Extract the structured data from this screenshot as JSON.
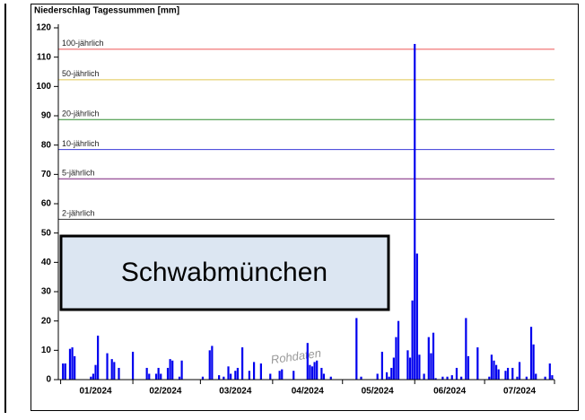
{
  "chart_data": {
    "type": "bar",
    "title": "Niederschlag Tagessummen [mm]",
    "station": "Schwabmünchen",
    "watermark": "Rohdaten",
    "color": "#0000ee",
    "ylim": [
      0,
      120
    ],
    "yticks": [
      0,
      10,
      20,
      30,
      40,
      50,
      60,
      70,
      80,
      90,
      100,
      110,
      120
    ],
    "xlim": [
      0,
      213
    ],
    "xticks": [
      {
        "value": 16,
        "label": "01/2024"
      },
      {
        "value": 46,
        "label": "02/2024"
      },
      {
        "value": 76,
        "label": "03/2024"
      },
      {
        "value": 107,
        "label": "04/2024"
      },
      {
        "value": 137,
        "label": "05/2024"
      },
      {
        "value": 168,
        "label": "06/2024"
      },
      {
        "value": 198,
        "label": "07/2024"
      }
    ],
    "xticks_minor": [
      1,
      32,
      61,
      92,
      122,
      153,
      183,
      213
    ],
    "thresholds": [
      {
        "name": "100-jährlich",
        "value": 112.7,
        "color": "#ee5555"
      },
      {
        "name": "50-jährlich",
        "value": 102.3,
        "color": "#e0c850"
      },
      {
        "name": "20-jährlich",
        "value": 88.7,
        "color": "#2e8b2e"
      },
      {
        "name": "10-jährlich",
        "value": 78.5,
        "color": "#3a3ad8"
      },
      {
        "name": "5-jährlich",
        "value": 68.5,
        "color": "#7a1f7a"
      },
      {
        "name": "2-jährlich",
        "value": 54.7,
        "color": "#333333"
      }
    ],
    "series": [
      {
        "x": [
          2,
          3,
          5,
          6,
          7,
          14,
          15,
          16,
          17,
          21,
          23,
          24,
          26,
          32,
          38,
          39,
          42,
          43,
          44,
          47,
          48,
          49,
          52,
          53,
          62,
          65,
          66,
          69,
          71,
          73,
          74,
          76,
          77,
          79,
          82,
          84,
          87,
          91,
          95,
          96,
          101,
          107,
          108,
          109,
          110,
          111,
          113,
          114,
          117,
          128,
          130,
          137,
          139,
          141,
          142,
          143,
          144,
          145,
          146,
          150,
          151,
          152,
          153,
          154,
          155,
          157,
          159,
          160,
          161,
          162,
          165,
          167,
          169,
          171,
          173,
          175,
          176,
          180,
          185,
          186,
          187,
          188,
          189,
          192,
          193,
          195,
          197,
          198,
          201,
          203,
          204,
          205,
          209,
          211,
          212
        ],
        "values": [
          5.5,
          5.5,
          10.5,
          11,
          8,
          1,
          2,
          5,
          15,
          9,
          7,
          6,
          4,
          9.5,
          4,
          2,
          2,
          4,
          2,
          4,
          7,
          6.5,
          1,
          6.5,
          1,
          10,
          11.5,
          1.5,
          1,
          4.5,
          2,
          3,
          4,
          11,
          3,
          6,
          5.5,
          2,
          3,
          3.5,
          3,
          12.5,
          5,
          4.5,
          6,
          6.5,
          4,
          2,
          1,
          21,
          1,
          2,
          9.5,
          2.5,
          1,
          4,
          7.5,
          14.5,
          20,
          10,
          7.5,
          27,
          114.5,
          43,
          8.5,
          2,
          14.5,
          9,
          16,
          0.5,
          1,
          1,
          1.5,
          4,
          1,
          21,
          8,
          11,
          1,
          8.5,
          6.5,
          5,
          3.5,
          3,
          4,
          4,
          1,
          6,
          1,
          18,
          12,
          2,
          1,
          5.5,
          1.5
        ]
      }
    ]
  }
}
